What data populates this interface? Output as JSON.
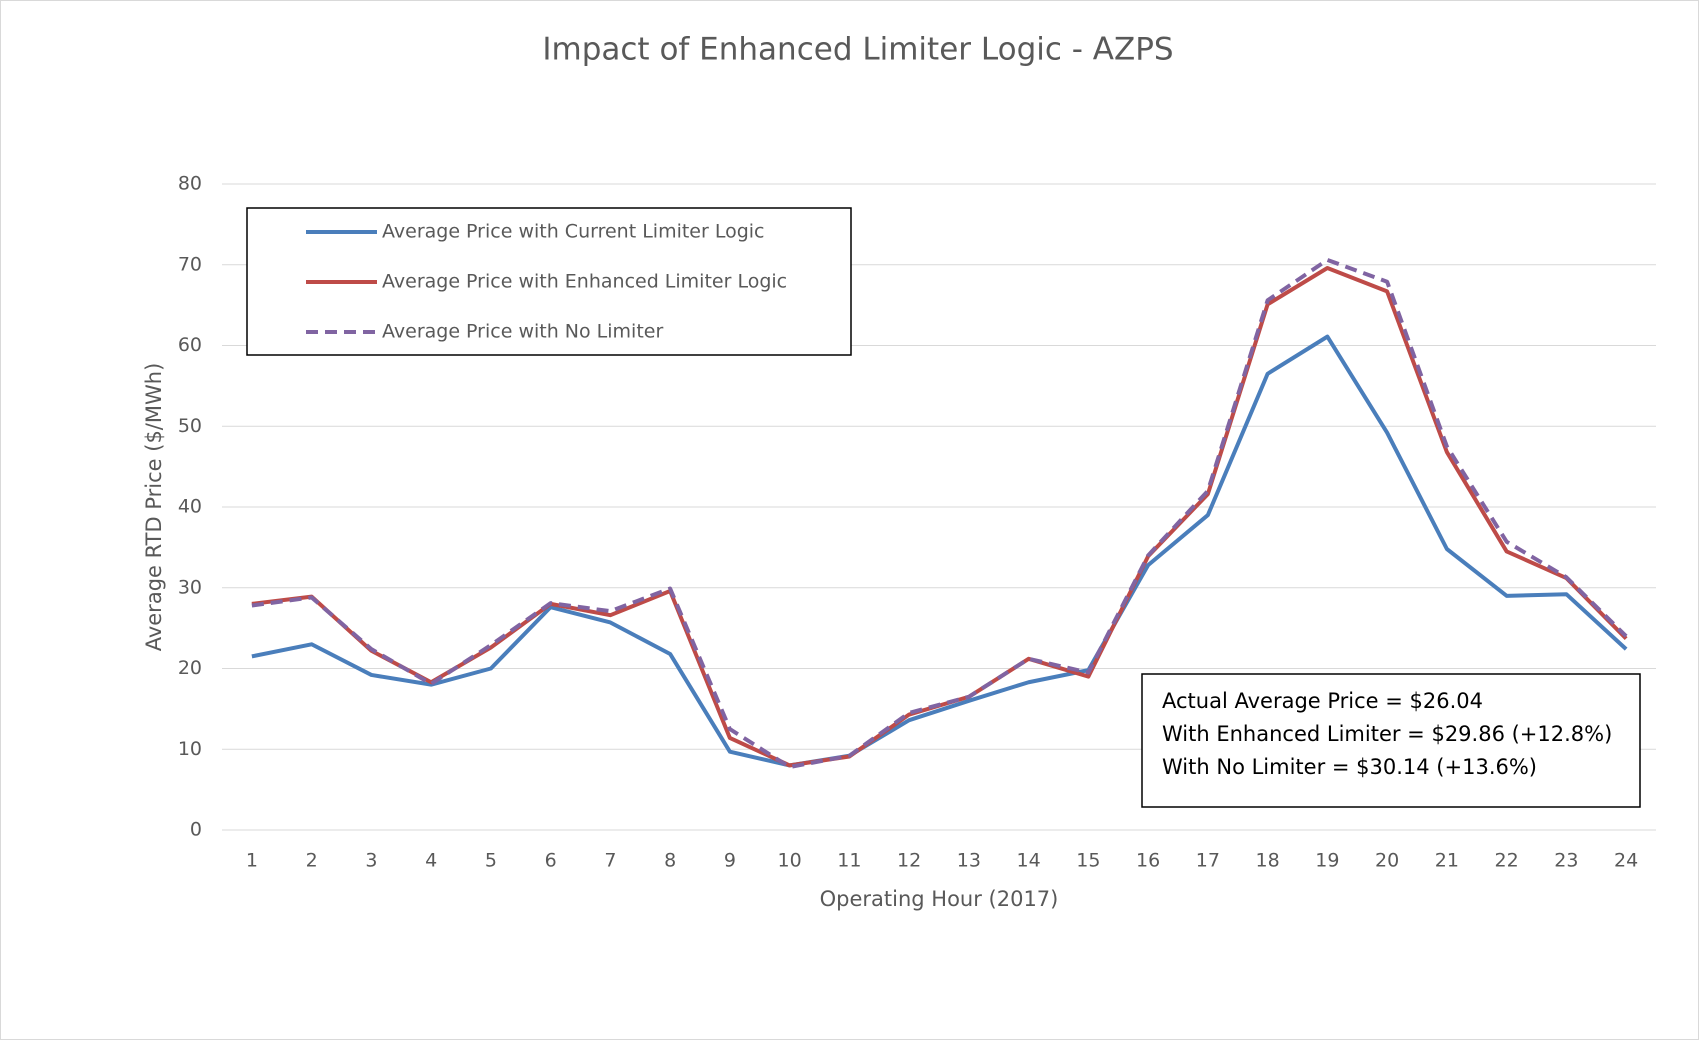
{
  "chart_data": {
    "type": "line",
    "title": "Impact of Enhanced Limiter Logic - AZPS",
    "x_label": "Operating Hour (2017)",
    "y_label": "Average RTD Price ($/MWh)",
    "categories": [
      "1",
      "2",
      "3",
      "4",
      "5",
      "6",
      "7",
      "8",
      "9",
      "10",
      "11",
      "12",
      "13",
      "14",
      "15",
      "16",
      "17",
      "18",
      "19",
      "20",
      "21",
      "22",
      "23",
      "24"
    ],
    "series": [
      {
        "name": "Average Price with Current Limiter Logic",
        "color": "#4a7ebb",
        "dash": false,
        "values": [
          21.5,
          23,
          19.2,
          18,
          20,
          27.6,
          25.7,
          21.8,
          9.7,
          8,
          9.2,
          13.6,
          16,
          18.3,
          19.8,
          32.8,
          39,
          56.5,
          61.1,
          49.2,
          34.8,
          29,
          29.2,
          22.4
        ]
      },
      {
        "name": "Average Price with Enhanced Limiter Logic",
        "color": "#be4b48",
        "dash": false,
        "values": [
          28,
          28.9,
          22.2,
          18.3,
          22.6,
          28,
          26.6,
          29.6,
          11.4,
          8,
          9.1,
          14.3,
          16.5,
          21.2,
          19,
          33.9,
          41.6,
          65.1,
          69.6,
          66.7,
          46.8,
          34.5,
          31.2,
          23.7
        ]
      },
      {
        "name": "Average Price with No Limiter",
        "color": "#8064a2",
        "dash": true,
        "values": [
          27.8,
          28.8,
          22.4,
          18.1,
          22.9,
          28.1,
          27.1,
          29.9,
          12.5,
          7.8,
          9.2,
          14.5,
          16.5,
          21.2,
          19.5,
          34,
          42,
          65.6,
          70.6,
          67.9,
          47.5,
          35.7,
          31.3,
          24
        ]
      }
    ],
    "ylim": [
      0,
      80
    ],
    "yticks": [
      0,
      10,
      20,
      30,
      40,
      50,
      60,
      70,
      80
    ],
    "grid": true,
    "legend": "upper left",
    "annotations": [
      "Actual Average Price = $26.04",
      "With Enhanced Limiter = $29.86 (+12.8%)",
      "With No Limiter = $30.14 (+13.6%)"
    ]
  }
}
